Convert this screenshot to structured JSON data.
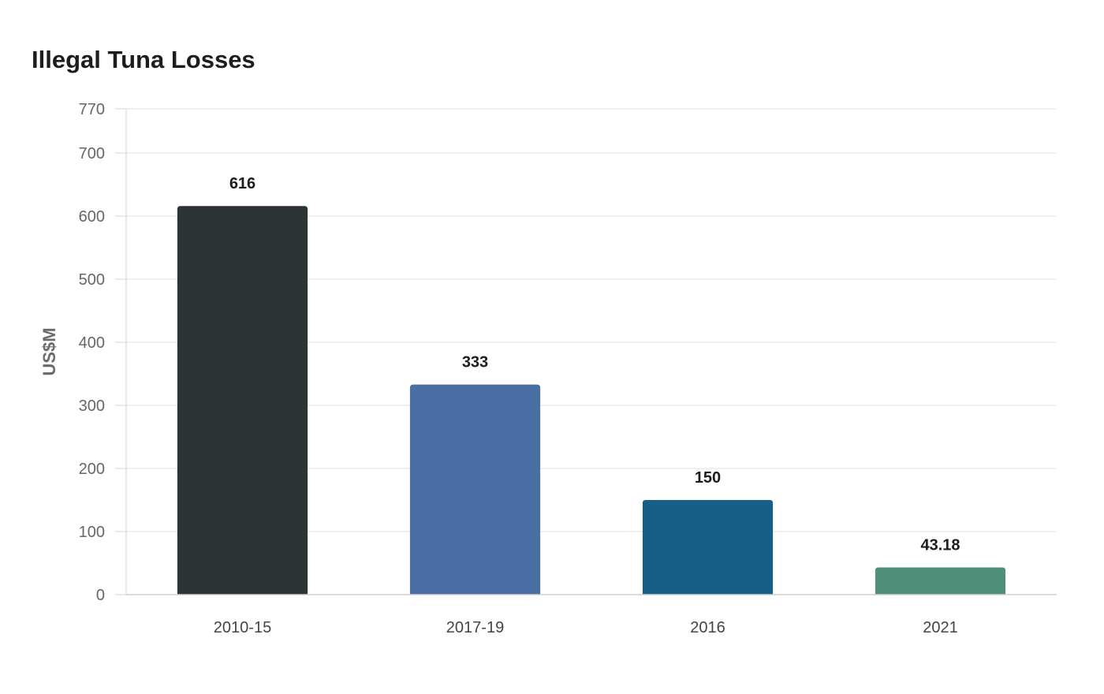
{
  "chart_data": {
    "type": "bar",
    "title": "Illegal Tuna Losses",
    "ylabel": "US$M",
    "xlabel": "",
    "categories": [
      "2010-15",
      "2017-19",
      "2016",
      "2021"
    ],
    "values": [
      616,
      333,
      150,
      43.18
    ],
    "value_labels": [
      "616",
      "333",
      "150",
      "43.18"
    ],
    "colors": [
      "#2d3436",
      "#4a6fa5",
      "#166088",
      "#4f8f7a"
    ],
    "ylim": [
      0,
      770
    ],
    "yticks": [
      0,
      100,
      200,
      300,
      400,
      500,
      600,
      700,
      770
    ],
    "grid": true,
    "legend": "none"
  }
}
